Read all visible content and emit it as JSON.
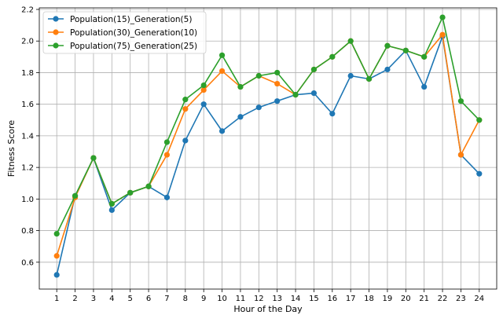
{
  "chart_data": {
    "type": "line",
    "title": "",
    "xlabel": "Hour of the Day",
    "ylabel": "Fitness Score",
    "x": [
      1,
      2,
      3,
      4,
      5,
      6,
      7,
      8,
      9,
      10,
      11,
      12,
      13,
      14,
      15,
      16,
      17,
      18,
      19,
      20,
      21,
      22,
      23,
      24
    ],
    "xticks": [
      "1",
      "2",
      "3",
      "4",
      "5",
      "6",
      "7",
      "8",
      "9",
      "10",
      "11",
      "12",
      "13",
      "14",
      "15",
      "16",
      "17",
      "18",
      "19",
      "20",
      "21",
      "22",
      "23",
      "24"
    ],
    "xlim": [
      0.05,
      24.95
    ],
    "ylim": [
      0.43,
      2.21
    ],
    "yticks": [
      0.6,
      0.8,
      1.0,
      1.2,
      1.4,
      1.6,
      1.8,
      2.0,
      2.2
    ],
    "ytick_labels": [
      "0.6",
      "0.8",
      "1.0",
      "1.2",
      "1.4",
      "1.6",
      "1.8",
      "2.0",
      "2.2"
    ],
    "grid": true,
    "legend_position": "top-left",
    "series": [
      {
        "name": "Population(15)_Generation(5)",
        "color": "#1f77b4",
        "values": [
          0.52,
          1.02,
          1.26,
          0.93,
          1.04,
          1.08,
          1.01,
          1.37,
          1.6,
          1.43,
          1.52,
          1.58,
          1.62,
          1.66,
          1.67,
          1.54,
          1.78,
          1.76,
          1.82,
          1.94,
          1.71,
          2.03,
          1.28,
          1.16
        ]
      },
      {
        "name": "Population(30)_Generation(10)",
        "color": "#ff7f0e",
        "values": [
          0.64,
          1.01,
          1.26,
          0.97,
          1.04,
          1.08,
          1.28,
          1.57,
          1.69,
          1.81,
          1.71,
          1.78,
          1.73,
          1.66,
          1.82,
          1.9,
          2.0,
          1.76,
          1.97,
          1.94,
          1.9,
          2.04,
          1.28,
          1.5
        ]
      },
      {
        "name": "Population(75)_Generation(25)",
        "color": "#2ca02c",
        "values": [
          0.78,
          1.02,
          1.26,
          0.97,
          1.04,
          1.08,
          1.36,
          1.63,
          1.72,
          1.91,
          1.71,
          1.78,
          1.8,
          1.66,
          1.82,
          1.9,
          2.0,
          1.76,
          1.97,
          1.94,
          1.9,
          2.15,
          1.62,
          1.5
        ]
      }
    ]
  }
}
